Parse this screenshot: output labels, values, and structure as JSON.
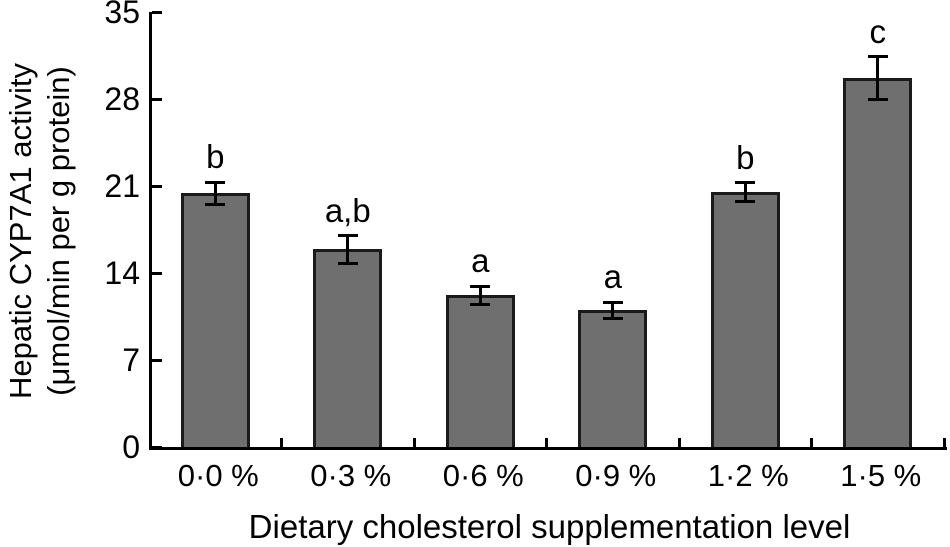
{
  "figure": {
    "background": "#ffffff",
    "text_color": "#000000"
  },
  "chart_data": {
    "type": "bar",
    "title": "",
    "xlabel": "Dietary cholesterol supplementation level",
    "ylabel": "Hepatic CYP7A1 activity (μmol/min per g protein)",
    "ylabel_lines": [
      "Hepatic CYP7A1 activity",
      "(μmol/min per g protein)"
    ],
    "categories": [
      "0·0 %",
      "0·3 %",
      "0·6 %",
      "0·9 %",
      "1·2 %",
      "1·5 %"
    ],
    "values": [
      20.4,
      15.9,
      12.2,
      11.0,
      20.5,
      29.7
    ],
    "error_bars": [
      0.9,
      1.1,
      0.75,
      0.65,
      0.75,
      1.7
    ],
    "significance_letters": [
      "b",
      "a,b",
      "a",
      "a",
      "b",
      "c"
    ],
    "yticks": [
      0,
      7,
      14,
      21,
      28,
      35
    ],
    "ylim": [
      0,
      35
    ],
    "grid": false,
    "legend": "none",
    "bar_color": "#6f6f6f",
    "bar_border_color": "#1a1a1a",
    "axis_color": "#000000"
  }
}
